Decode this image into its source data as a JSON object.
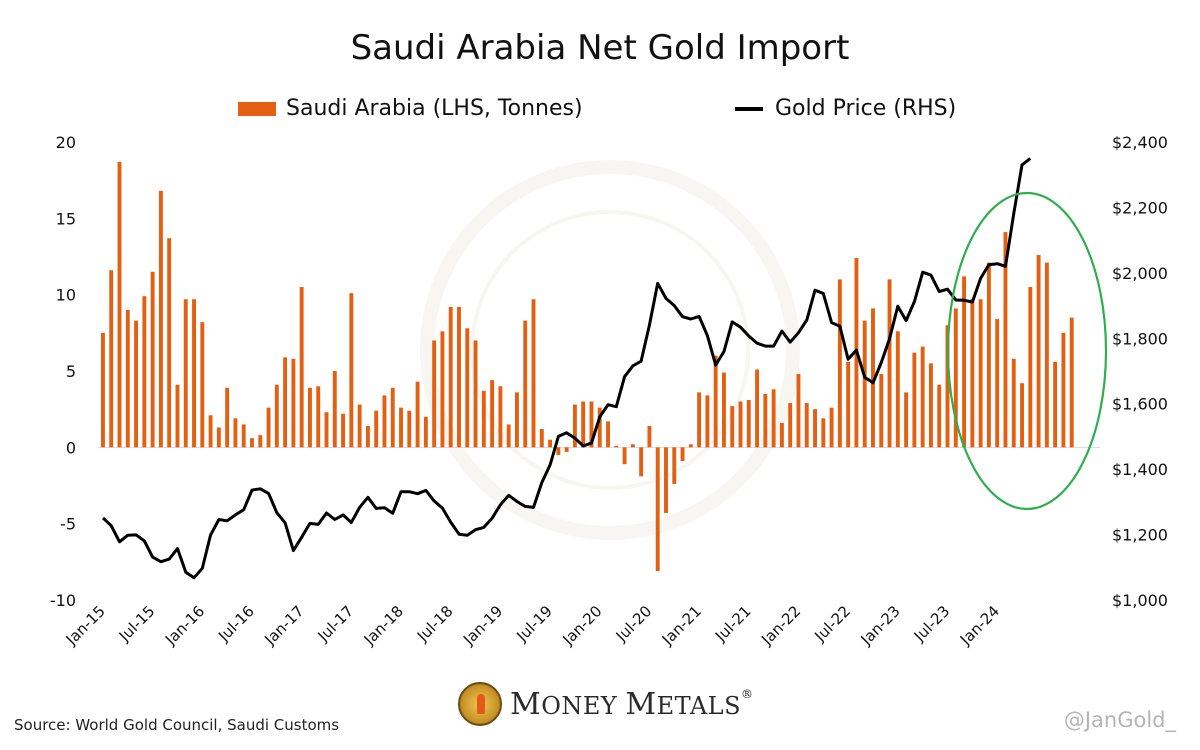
{
  "title": "Saudi Arabia Net Gold Import",
  "legend": {
    "bars_label": "Saudi Arabia (LHS, Tonnes)",
    "line_label": "Gold Price (RHS)"
  },
  "source": "Source: World Gold Council, Saudi Customs",
  "handle": "@JanGold_",
  "logo": {
    "first": "M",
    "first_rest": "ONEY ",
    "second": "M",
    "second_rest": "ETALS",
    "reg": "®"
  },
  "colors": {
    "bars": "#e35f12",
    "line": "#000000",
    "highlight_ellipse": "#2fae4e"
  },
  "chart_data": {
    "type": "bar+line",
    "x_tick_labels": [
      "Jan-15",
      "Jul-15",
      "Jan-16",
      "Jul-16",
      "Jan-17",
      "Jul-17",
      "Jan-18",
      "Jul-18",
      "Jan-19",
      "Jul-19",
      "Jan-20",
      "Jul-20",
      "Jan-21",
      "Jul-21",
      "Jan-22",
      "Jul-22",
      "Jan-23",
      "Jul-23",
      "Jan-24"
    ],
    "start_month": "Jan-15",
    "y_left": {
      "ylim": [
        -10,
        20
      ],
      "ticks": [
        "-10",
        "-5",
        "0",
        "5",
        "10",
        "15",
        "20"
      ]
    },
    "y_right": {
      "ylim": [
        1000,
        2400
      ],
      "ticks": [
        "$1,000",
        "$1,200",
        "$1,400",
        "$1,600",
        "$1,800",
        "$2,000",
        "$2,200",
        "$2,400"
      ]
    },
    "grid": false,
    "series": [
      {
        "name": "Saudi Arabia (LHS, Tonnes)",
        "type": "bar",
        "axis": "left",
        "values": [
          7.5,
          11.6,
          18.7,
          9.0,
          8.3,
          9.9,
          11.5,
          16.8,
          13.7,
          4.1,
          9.7,
          9.7,
          8.2,
          2.1,
          1.3,
          3.9,
          1.9,
          1.5,
          0.6,
          0.8,
          2.6,
          4.1,
          5.9,
          5.8,
          10.5,
          3.9,
          4.0,
          2.3,
          5.0,
          2.2,
          10.1,
          2.8,
          1.4,
          2.4,
          3.4,
          3.9,
          2.6,
          2.4,
          4.3,
          2.0,
          7.0,
          7.6,
          9.2,
          9.2,
          7.8,
          7.0,
          3.7,
          4.4,
          4.0,
          1.5,
          3.6,
          8.3,
          9.7,
          1.2,
          0.5,
          -0.5,
          -0.3,
          2.8,
          3.0,
          3.0,
          2.6,
          1.7,
          0.1,
          -1.1,
          0.2,
          -1.9,
          1.4,
          -8.1,
          -4.3,
          -2.4,
          -0.9,
          0.2,
          3.6,
          3.4,
          6.0,
          4.9,
          2.7,
          3.0,
          3.1,
          5.1,
          3.5,
          3.8,
          1.6,
          2.9,
          4.8,
          2.9,
          2.5,
          1.9,
          2.6,
          11.0,
          5.6,
          12.4,
          8.3,
          9.1,
          4.8,
          11.0,
          7.6,
          3.6,
          6.2,
          6.6,
          5.5,
          4.1,
          8.0,
          9.1,
          11.2,
          9.7,
          9.7,
          12.1,
          8.4,
          14.1,
          5.8,
          4.2,
          10.5,
          12.6,
          12.1,
          5.6,
          7.5,
          8.5
        ]
      },
      {
        "name": "Gold Price (RHS)",
        "type": "line",
        "axis": "right",
        "values": [
          1251,
          1227,
          1178,
          1198,
          1199,
          1181,
          1131,
          1117,
          1125,
          1157,
          1085,
          1068,
          1097,
          1199,
          1246,
          1242,
          1260,
          1276,
          1336,
          1340,
          1326,
          1267,
          1236,
          1151,
          1192,
          1234,
          1231,
          1266,
          1246,
          1260,
          1237,
          1283,
          1314,
          1280,
          1282,
          1265,
          1331,
          1331,
          1325,
          1335,
          1303,
          1281,
          1238,
          1201,
          1198,
          1215,
          1222,
          1250,
          1291,
          1320,
          1301,
          1286,
          1283,
          1359,
          1413,
          1500,
          1511,
          1495,
          1471,
          1480,
          1560,
          1597,
          1591,
          1683,
          1716,
          1730,
          1840,
          1968,
          1922,
          1900,
          1866,
          1859,
          1867,
          1808,
          1718,
          1760,
          1850,
          1834,
          1807,
          1785,
          1776,
          1776,
          1822,
          1788,
          1817,
          1856,
          1947,
          1937,
          1848,
          1837,
          1736,
          1764,
          1681,
          1664,
          1726,
          1798,
          1898,
          1854,
          1912,
          2002,
          1993,
          1943,
          1950,
          1917,
          1916,
          1911,
          1983,
          2025,
          2028,
          2020,
          2182,
          2330,
          2350
        ]
      }
    ],
    "annotations": [
      {
        "type": "ellipse",
        "color": "green",
        "description_range": "Jan-23 to Jun-24"
      }
    ]
  }
}
